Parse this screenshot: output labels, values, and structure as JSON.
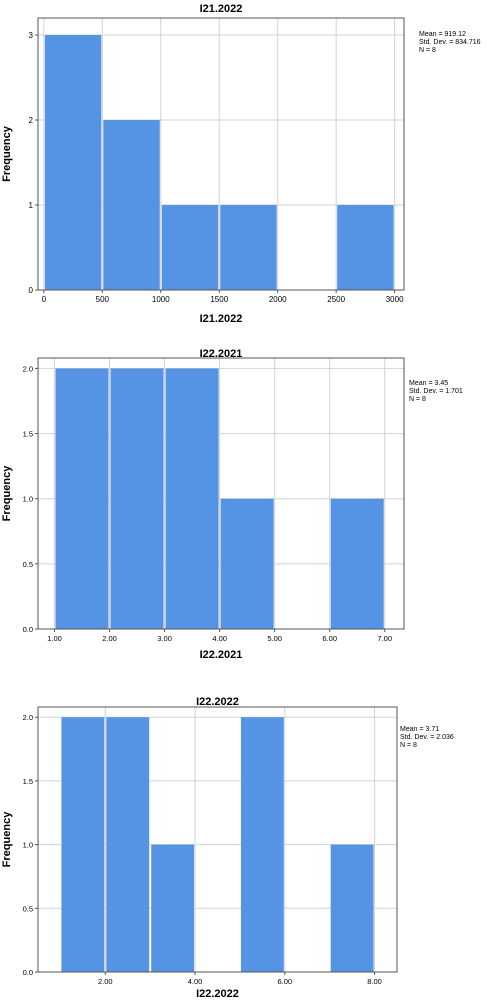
{
  "chart_data": [
    {
      "type": "bar",
      "title": "I21.2022",
      "xlabel": "I21.2022",
      "ylabel": "Frequency",
      "bins": [
        [
          0,
          500
        ],
        [
          500,
          1000
        ],
        [
          1000,
          1500
        ],
        [
          1500,
          2000
        ],
        [
          2000,
          2500
        ],
        [
          2500,
          3000
        ]
      ],
      "values": [
        3,
        2,
        1,
        1,
        0,
        1
      ],
      "xlim": [
        -50,
        3080
      ],
      "ylim": [
        0,
        3.2
      ],
      "x_ticks": [
        0,
        500,
        1000,
        1500,
        2000,
        2500,
        3000
      ],
      "x_tick_labels": [
        "0",
        "500",
        "1000",
        "1500",
        "2000",
        "2500",
        "3000"
      ],
      "y_ticks": [
        0,
        1,
        2,
        3
      ],
      "y_tick_labels": [
        "0",
        "1",
        "2",
        "3"
      ],
      "stats": [
        "Mean = 919.12",
        "Std. Dev. = 834.716",
        "N = 8"
      ],
      "grid": true,
      "bar_color": "#5594e4"
    },
    {
      "type": "bar",
      "title": "I22.2021",
      "xlabel": "I22.2021",
      "ylabel": "Frequency",
      "bins": [
        [
          1,
          2
        ],
        [
          2,
          3
        ],
        [
          3,
          4
        ],
        [
          4,
          5
        ],
        [
          5,
          6
        ],
        [
          6,
          7
        ]
      ],
      "values": [
        2,
        2,
        2,
        1,
        0,
        1
      ],
      "xlim": [
        0.7,
        7.35
      ],
      "ylim": [
        0,
        2.08
      ],
      "x_ticks": [
        1,
        2,
        3,
        4,
        5,
        6,
        7
      ],
      "x_tick_labels": [
        "1.00",
        "2.00",
        "3.00",
        "4.00",
        "5.00",
        "6.00",
        "7.00"
      ],
      "y_ticks": [
        0,
        0.5,
        1.0,
        1.5,
        2.0
      ],
      "y_tick_labels": [
        "0.0",
        "0.5",
        "1.0",
        "1.5",
        "2.0"
      ],
      "stats": [
        "Mean = 3.45",
        "Std. Dev. = 1.701",
        "N = 8"
      ],
      "grid": true,
      "bar_color": "#5594e4"
    },
    {
      "type": "bar",
      "title": "I22.2022",
      "xlabel": "I22.2022",
      "ylabel": "Frequency",
      "bins": [
        [
          1,
          2
        ],
        [
          2,
          3
        ],
        [
          3,
          4
        ],
        [
          4,
          5
        ],
        [
          5,
          6
        ],
        [
          6,
          7
        ],
        [
          7,
          8
        ]
      ],
      "values": [
        2,
        2,
        1,
        0,
        2,
        0,
        1
      ],
      "xlim": [
        0.5,
        8.5
      ],
      "ylim": [
        0,
        2.08
      ],
      "x_ticks": [
        2,
        4,
        6,
        8
      ],
      "x_tick_labels": [
        "2.00",
        "4.00",
        "6.00",
        "8.00"
      ],
      "y_ticks": [
        0,
        0.5,
        1.0,
        1.5,
        2.0
      ],
      "y_tick_labels": [
        "0.0",
        "0.5",
        "1.0",
        "1.5",
        "2.0"
      ],
      "stats": [
        "Mean = 3.71",
        "Std. Dev. = 2.036",
        "N = 8"
      ],
      "grid": true,
      "bar_color": "#5594e4"
    }
  ]
}
